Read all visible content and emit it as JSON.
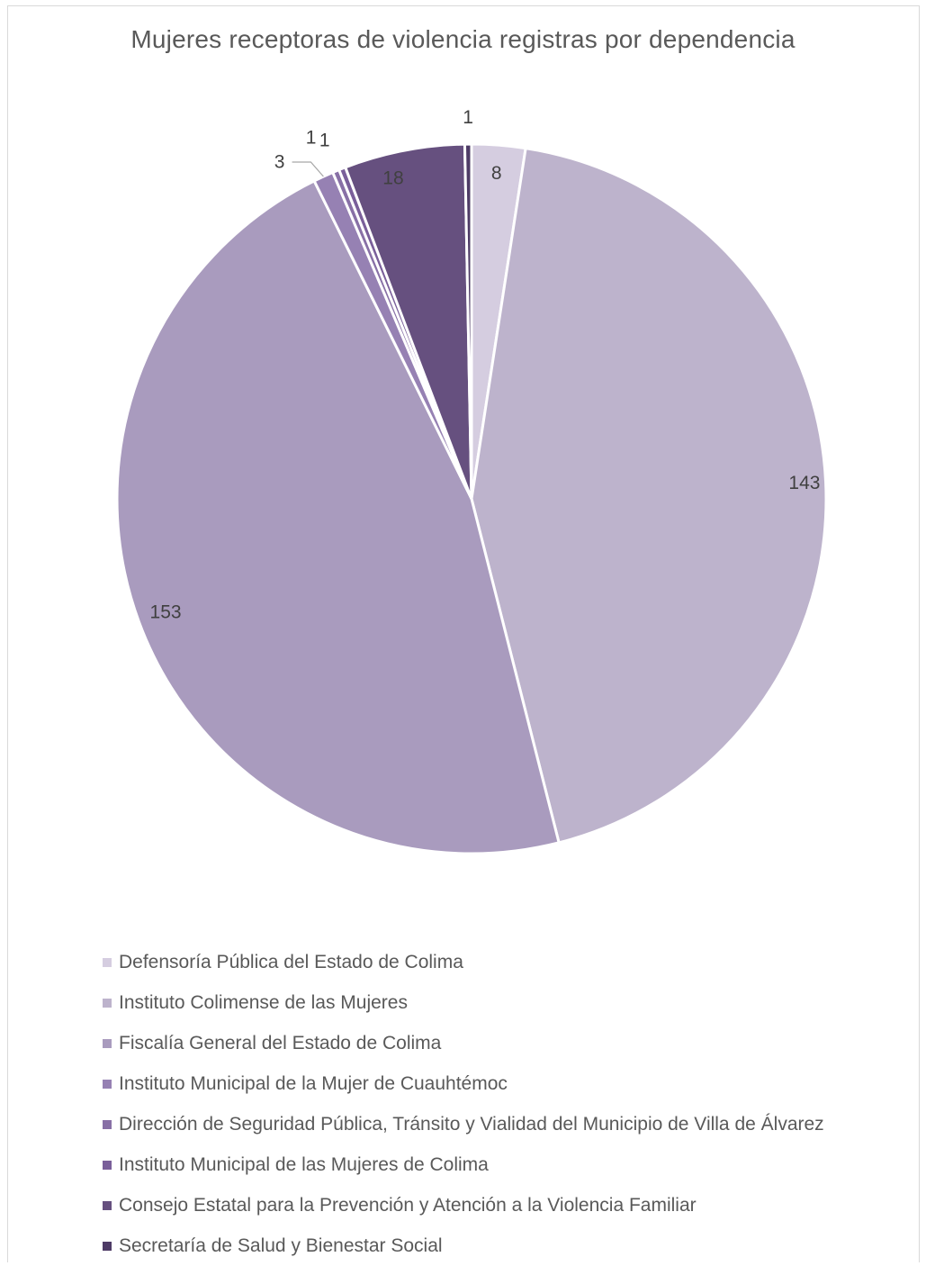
{
  "chart_data": {
    "type": "pie",
    "title": "Mujeres receptoras de violencia registras por dependencia",
    "legend_position": "bottom",
    "categories": [
      "Defensoría Pública del Estado de Colima",
      "Instituto Colimense de las Mujeres",
      "Fiscalía General del Estado de Colima",
      "Instituto Municipal de la Mujer de Cuauhtémoc",
      "Dirección de Seguridad Pública, Tránsito y Vialidad del Municipio de Villa de Álvarez",
      "Instituto Municipal de las Mujeres de Colima",
      "Consejo Estatal para la Prevención y Atención a la Violencia Familiar",
      "Secretaría de Salud y Bienestar Social"
    ],
    "values": [
      8,
      143,
      153,
      3,
      1,
      1,
      18,
      1
    ],
    "labels": [
      "8",
      "143",
      "153",
      "3",
      "1",
      "1",
      "18",
      "1"
    ],
    "colors": [
      "#d5cde0",
      "#bdb3cc",
      "#a99bbe",
      "#9681b3",
      "#8870a6",
      "#7a5f9a",
      "#66507f",
      "#4e3b66"
    ]
  }
}
